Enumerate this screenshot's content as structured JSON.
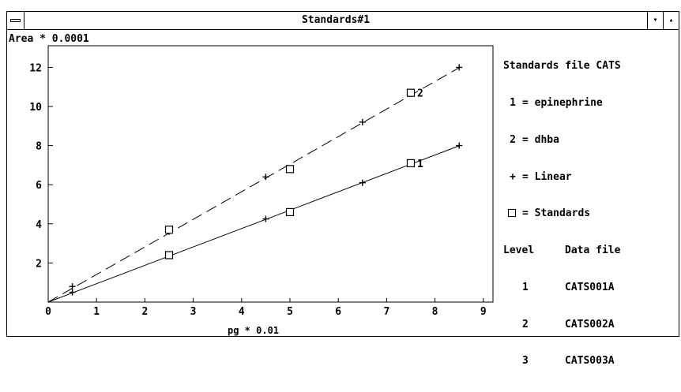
{
  "window": {
    "title": "Standards#1",
    "minimize_glyph": "▾",
    "maximize_glyph": "▴"
  },
  "legend": {
    "header": "Standards file CATS",
    "items": [
      {
        "symbol": "1",
        "text": "= epinephrine"
      },
      {
        "symbol": "2",
        "text": "= dhba"
      },
      {
        "symbol": "+",
        "text": "= Linear"
      },
      {
        "symbol": "",
        "text": "= Standards"
      }
    ],
    "table_header": {
      "level": "Level",
      "file": "Data file"
    },
    "rows": [
      {
        "level": "1",
        "file": "CATS001A"
      },
      {
        "level": "2",
        "file": "CATS002A"
      },
      {
        "level": "3",
        "file": "CATS003A"
      }
    ]
  },
  "chart_data": {
    "type": "scatter",
    "ylabel": "Area * 0.0001",
    "xlabel": "pg * 0.01",
    "xlim": [
      0,
      9
    ],
    "ylim": [
      0,
      13
    ],
    "x_ticks": [
      "0",
      "1",
      "2",
      "3",
      "4",
      "5",
      "6",
      "7",
      "8",
      "9"
    ],
    "y_ticks": [
      "2",
      "4",
      "6",
      "8",
      "10",
      "12"
    ],
    "grid": false,
    "series": [
      {
        "name": "1",
        "line_style": "solid",
        "fit": {
          "slope": 0.94,
          "intercept": 0
        },
        "linear_points": [
          [
            0.5,
            0.5
          ],
          [
            2.5,
            2.4
          ],
          [
            4.5,
            4.25
          ],
          [
            6.5,
            6.1
          ],
          [
            8.5,
            8.0
          ]
        ],
        "standards": [
          [
            2.5,
            2.4
          ],
          [
            5.0,
            4.6
          ],
          [
            7.5,
            7.1
          ]
        ]
      },
      {
        "name": "2",
        "line_style": "dashed",
        "fit": {
          "slope": 1.41,
          "intercept": 0
        },
        "linear_points": [
          [
            0.5,
            0.8
          ],
          [
            2.5,
            3.6
          ],
          [
            4.5,
            6.4
          ],
          [
            6.5,
            9.2
          ],
          [
            8.5,
            12.0
          ]
        ],
        "standards": [
          [
            2.5,
            3.7
          ],
          [
            5.0,
            6.8
          ],
          [
            7.5,
            10.7
          ]
        ]
      }
    ]
  }
}
